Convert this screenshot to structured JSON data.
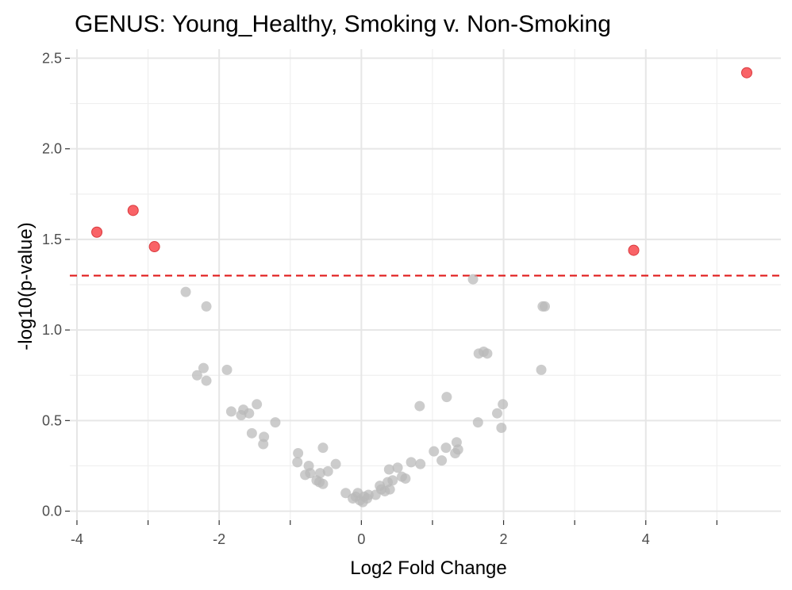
{
  "chart_data": {
    "type": "scatter",
    "title": "GENUS: Young_Healthy, Smoking v. Non-Smoking",
    "xlabel": "Log2 Fold Change",
    "ylabel": "-log10(p-value)",
    "xlim": [
      -4.1,
      5.9
    ],
    "ylim": [
      -0.05,
      2.55
    ],
    "xticks": [
      -4,
      -2,
      0,
      2,
      4
    ],
    "xtick_labels": [
      "-4",
      "-2",
      "0",
      "2",
      "4"
    ],
    "yticks": [
      0.0,
      0.5,
      1.0,
      1.5,
      2.0,
      2.5
    ],
    "ytick_labels": [
      "0.0",
      "0.5",
      "1.0",
      "1.5",
      "2.0",
      "2.5"
    ],
    "threshold_y": 1.3,
    "grid": true,
    "legend": "none",
    "colors": {
      "significant": "#f8484c",
      "not_significant": "#b8b8b8",
      "threshold_line": "#e01b1b"
    },
    "series": [
      {
        "color_key": "significant",
        "points": [
          [
            -3.72,
            1.54
          ],
          [
            -3.21,
            1.66
          ],
          [
            -2.91,
            1.46
          ],
          [
            3.83,
            1.44
          ],
          [
            5.42,
            2.42
          ]
        ]
      },
      {
        "color_key": "not_significant",
        "points": [
          [
            -2.47,
            1.21
          ],
          [
            -2.18,
            1.13
          ],
          [
            -2.31,
            0.75
          ],
          [
            -2.22,
            0.79
          ],
          [
            -2.18,
            0.72
          ],
          [
            -1.89,
            0.78
          ],
          [
            -1.83,
            0.55
          ],
          [
            -1.69,
            0.53
          ],
          [
            -1.66,
            0.56
          ],
          [
            -1.58,
            0.54
          ],
          [
            -1.47,
            0.59
          ],
          [
            -1.54,
            0.43
          ],
          [
            -1.37,
            0.41
          ],
          [
            -1.38,
            0.37
          ],
          [
            -1.21,
            0.49
          ],
          [
            -0.89,
            0.32
          ],
          [
            -0.9,
            0.27
          ],
          [
            -0.79,
            0.2
          ],
          [
            -0.74,
            0.25
          ],
          [
            -0.72,
            0.21
          ],
          [
            -0.63,
            0.17
          ],
          [
            -0.59,
            0.16
          ],
          [
            -0.58,
            0.21
          ],
          [
            -0.54,
            0.35
          ],
          [
            -0.54,
            0.15
          ],
          [
            -0.47,
            0.22
          ],
          [
            -0.36,
            0.26
          ],
          [
            -0.22,
            0.1
          ],
          [
            -0.12,
            0.07
          ],
          [
            -0.08,
            0.08
          ],
          [
            -0.05,
            0.1
          ],
          [
            -0.02,
            0.06
          ],
          [
            0.02,
            0.05
          ],
          [
            0.04,
            0.08
          ],
          [
            0.08,
            0.07
          ],
          [
            0.1,
            0.09
          ],
          [
            0.2,
            0.09
          ],
          [
            0.26,
            0.14
          ],
          [
            0.28,
            0.12
          ],
          [
            0.33,
            0.11
          ],
          [
            0.37,
            0.16
          ],
          [
            0.39,
            0.23
          ],
          [
            0.4,
            0.12
          ],
          [
            0.44,
            0.17
          ],
          [
            0.51,
            0.24
          ],
          [
            0.57,
            0.19
          ],
          [
            0.62,
            0.18
          ],
          [
            0.7,
            0.27
          ],
          [
            0.83,
            0.26
          ],
          [
            0.82,
            0.58
          ],
          [
            1.02,
            0.33
          ],
          [
            1.13,
            0.28
          ],
          [
            1.19,
            0.35
          ],
          [
            1.2,
            0.63
          ],
          [
            1.32,
            0.32
          ],
          [
            1.34,
            0.38
          ],
          [
            1.36,
            0.34
          ],
          [
            1.57,
            1.28
          ],
          [
            1.64,
            0.49
          ],
          [
            1.65,
            0.87
          ],
          [
            1.72,
            0.88
          ],
          [
            1.77,
            0.87
          ],
          [
            1.91,
            0.54
          ],
          [
            1.97,
            0.46
          ],
          [
            1.99,
            0.59
          ],
          [
            2.53,
            0.78
          ],
          [
            2.55,
            1.13
          ],
          [
            2.58,
            1.13
          ]
        ]
      }
    ]
  }
}
